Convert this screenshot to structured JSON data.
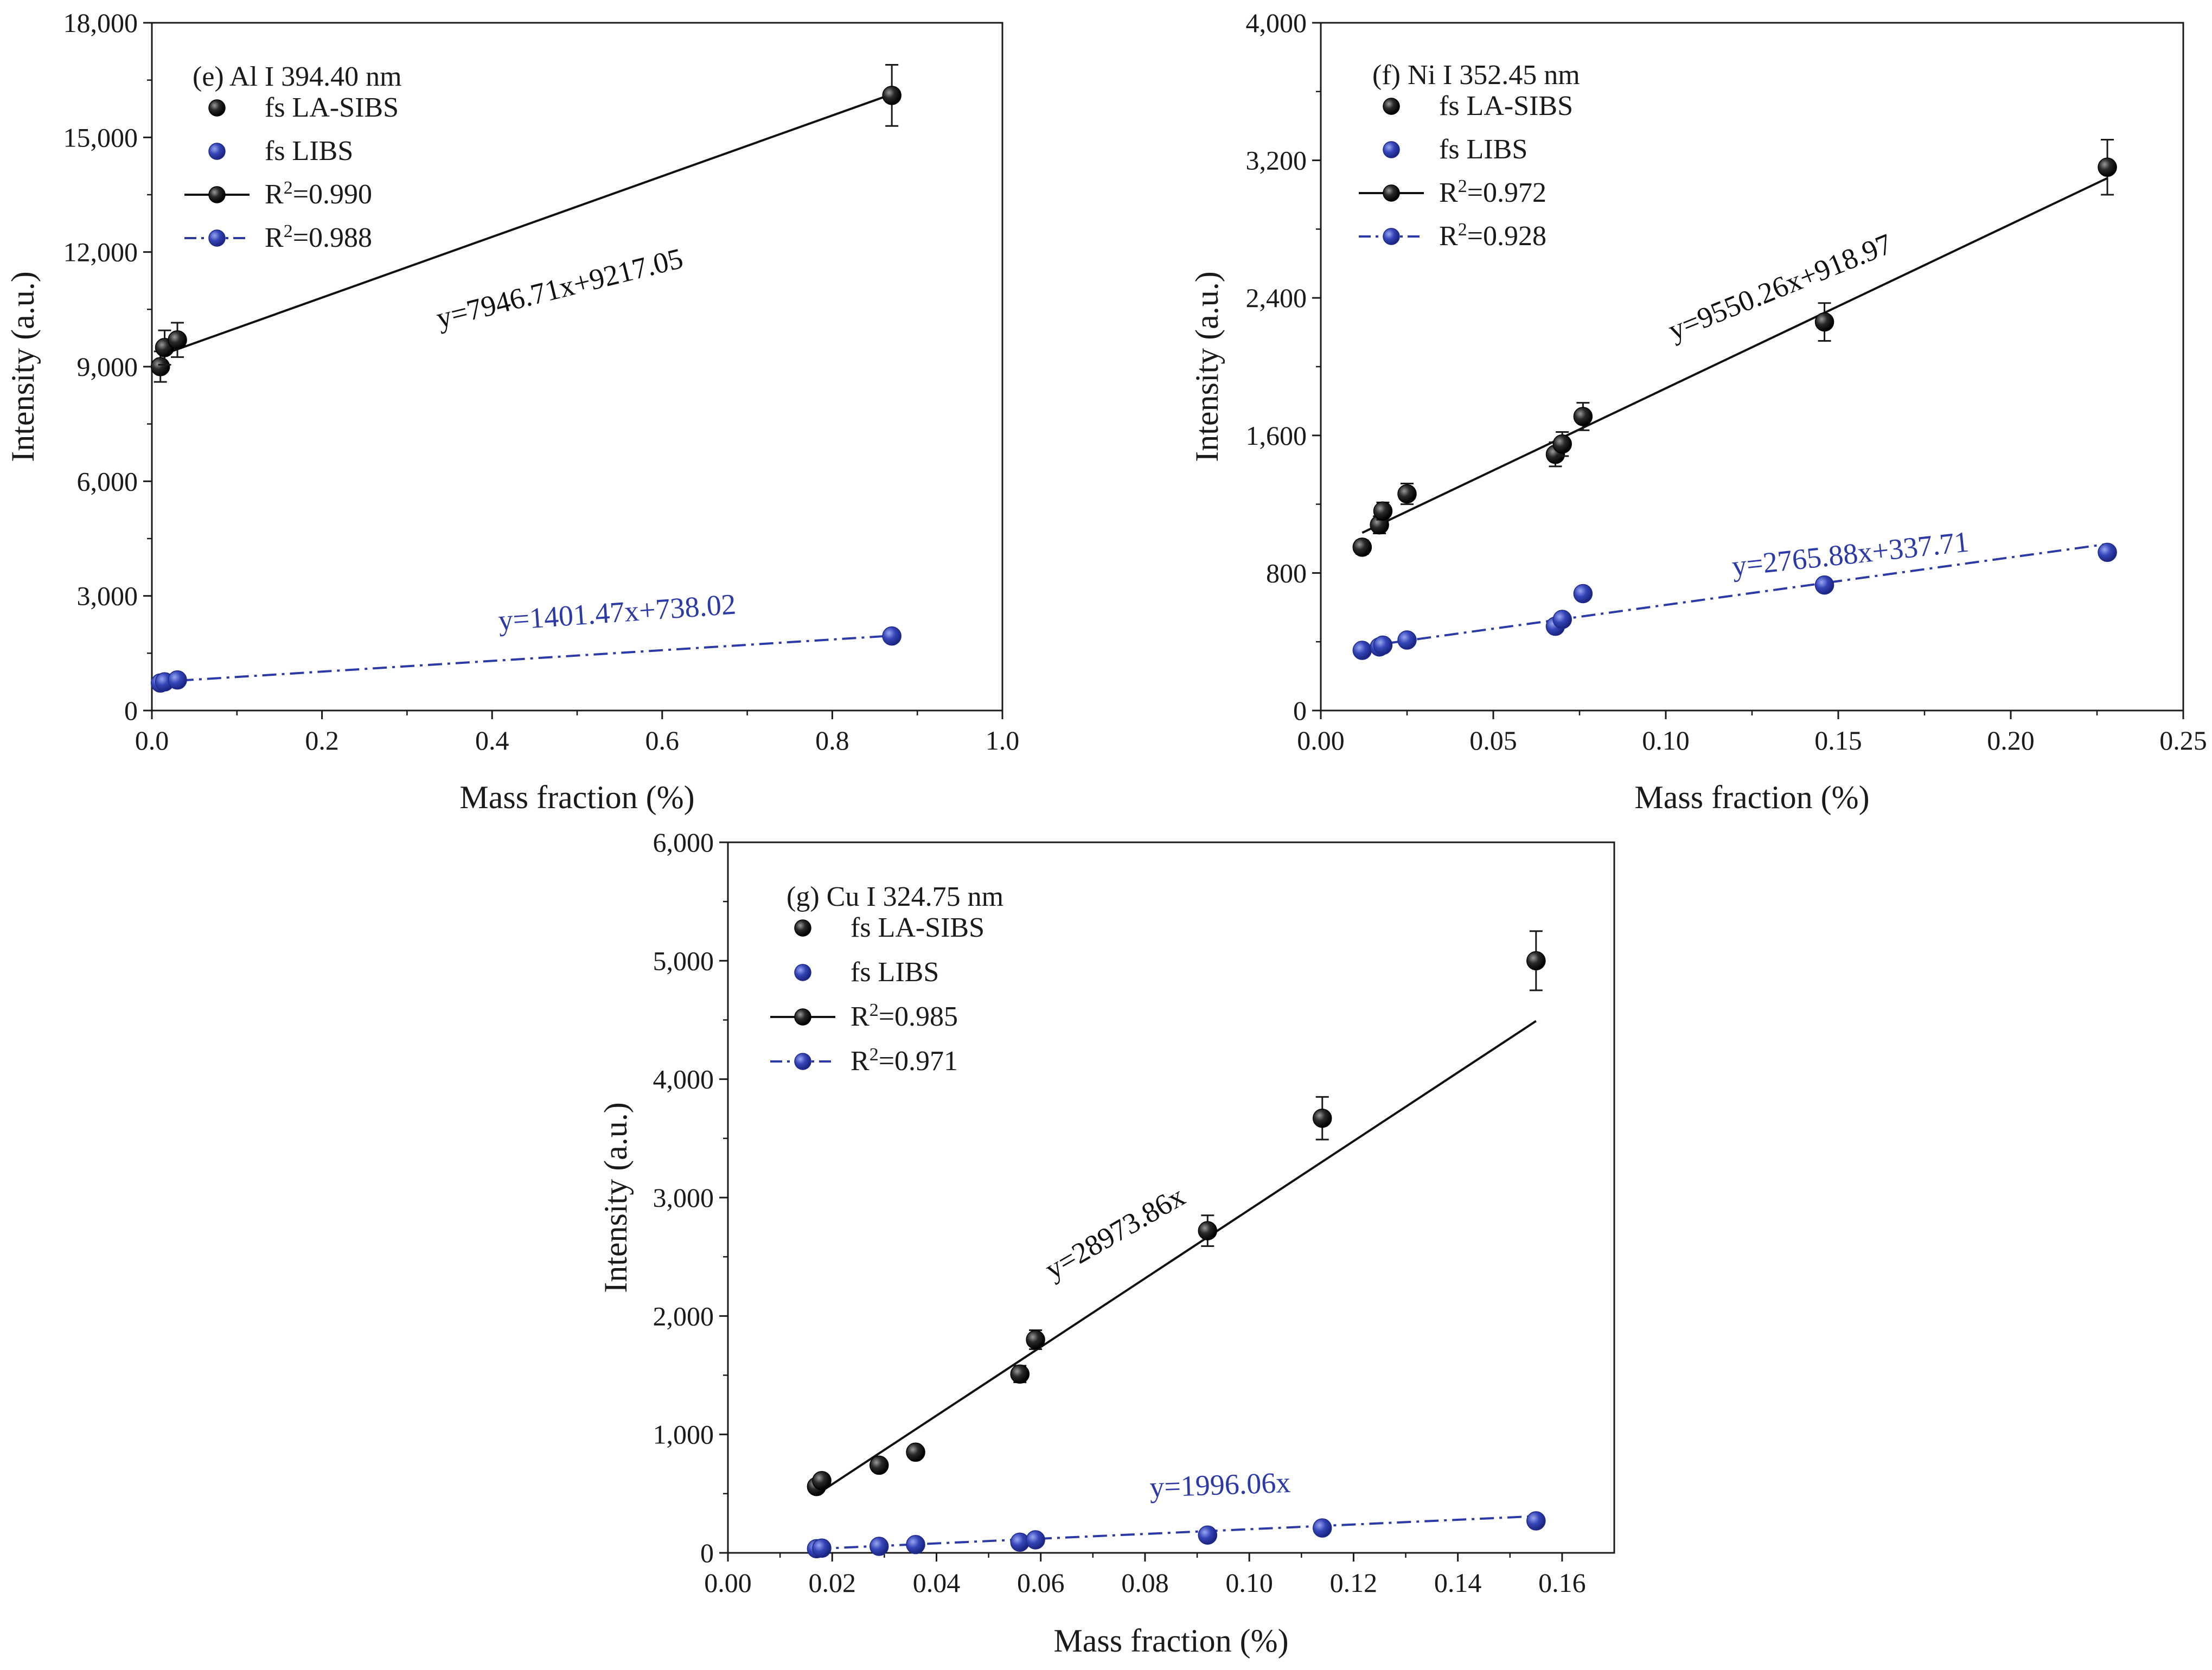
{
  "chart_data": [
    {
      "type": "scatter",
      "title": "(e) Al I 394.40 nm",
      "xlabel": "Mass fraction (%)",
      "ylabel": "Intensity (a.u.)",
      "xlim": [
        0,
        1.0
      ],
      "ylim": [
        0,
        18000
      ],
      "xticks": [
        0,
        0.2,
        0.4,
        0.6,
        0.8,
        1.0
      ],
      "xtick_labels": [
        "0.0",
        "0.2",
        "0.4",
        "0.6",
        "0.8",
        "1.0"
      ],
      "yticks": [
        0,
        3000,
        6000,
        9000,
        12000,
        15000,
        18000
      ],
      "ytick_labels": [
        "0",
        "3,000",
        "6,000",
        "9,000",
        "12,000",
        "15,000",
        "18,000"
      ],
      "series": [
        {
          "name": "fs LA-SIBS",
          "fit_label": "R2=0.990",
          "r2_value": "0.990",
          "equation": "y=7946.71x+9217.05",
          "slope": 7946.71,
          "intercept": 9217.05,
          "color": "#111111",
          "line_style": "solid",
          "x": [
            0.01,
            0.015,
            0.03,
            0.87
          ],
          "y": [
            9000,
            9500,
            9700,
            16100
          ],
          "err": [
            400,
            450,
            450,
            800
          ],
          "fit_x": [
            0.01,
            0.87
          ]
        },
        {
          "name": "fs LIBS",
          "fit_label": "R2=0.988",
          "r2_value": "0.988",
          "equation": "y=1401.47x+738.02",
          "slope": 1401.47,
          "intercept": 738.02,
          "color": "#2c3aa8",
          "line_style": "dashdot",
          "x": [
            0.01,
            0.015,
            0.03,
            0.87
          ],
          "y": [
            720,
            750,
            800,
            1950
          ],
          "err": [
            0,
            0,
            0,
            0
          ],
          "fit_x": [
            0.0,
            0.87
          ]
        }
      ]
    },
    {
      "type": "scatter",
      "title": "(f) Ni I 352.45 nm",
      "xlabel": "Mass fraction (%)",
      "ylabel": "Intensity (a.u.)",
      "xlim": [
        0,
        0.25
      ],
      "ylim": [
        0,
        4000
      ],
      "xticks": [
        0,
        0.05,
        0.1,
        0.15,
        0.2,
        0.25
      ],
      "xtick_labels": [
        "0.00",
        "0.05",
        "0.10",
        "0.15",
        "0.20",
        "0.25"
      ],
      "yticks": [
        0,
        800,
        1600,
        2400,
        3200,
        4000
      ],
      "ytick_labels": [
        "0",
        "800",
        "1,600",
        "2,400",
        "3,200",
        "4,000"
      ],
      "series": [
        {
          "name": "fs LA-SIBS",
          "fit_label": "R2=0.972",
          "r2_value": "0.972",
          "equation": "y=9550.26x+918.97",
          "slope": 9550.26,
          "intercept": 918.97,
          "color": "#111111",
          "line_style": "solid",
          "x": [
            0.012,
            0.017,
            0.018,
            0.025,
            0.068,
            0.07,
            0.076,
            0.146,
            0.228
          ],
          "y": [
            950,
            1080,
            1160,
            1260,
            1490,
            1550,
            1710,
            2260,
            3160
          ],
          "err": [
            40,
            50,
            50,
            60,
            70,
            70,
            80,
            110,
            160
          ],
          "fit_x": [
            0.012,
            0.228
          ]
        },
        {
          "name": "fs LIBS",
          "fit_label": "R2=0.928",
          "r2_value": "0.928",
          "equation": "y=2765.88x+337.71",
          "slope": 2765.88,
          "intercept": 337.71,
          "color": "#2c3aa8",
          "line_style": "dashdot",
          "x": [
            0.012,
            0.017,
            0.018,
            0.025,
            0.068,
            0.07,
            0.076,
            0.146,
            0.228
          ],
          "y": [
            350,
            370,
            380,
            410,
            490,
            530,
            680,
            730,
            920
          ],
          "err": [
            0,
            0,
            0,
            0,
            0,
            0,
            0,
            0,
            0
          ],
          "fit_x": [
            0.012,
            0.228
          ]
        }
      ]
    },
    {
      "type": "scatter",
      "title": "(g) Cu I 324.75 nm",
      "xlabel": "Mass fraction (%)",
      "ylabel": "Intensity (a.u.)",
      "xlim": [
        0,
        0.17
      ],
      "ylim": [
        0,
        6000
      ],
      "xticks": [
        0,
        0.02,
        0.04,
        0.06,
        0.08,
        0.1,
        0.12,
        0.14,
        0.16
      ],
      "xtick_labels": [
        "0.00",
        "0.02",
        "0.04",
        "0.06",
        "0.08",
        "0.10",
        "0.12",
        "0.14",
        "0.16"
      ],
      "yticks": [
        0,
        1000,
        2000,
        3000,
        4000,
        5000,
        6000
      ],
      "ytick_labels": [
        "0",
        "1,000",
        "2,000",
        "3,000",
        "4,000",
        "5,000",
        "6,000"
      ],
      "series": [
        {
          "name": "fs LA-SIBS",
          "fit_label": "R2=0.985",
          "r2_value": "0.985",
          "equation": "y=28973.86x",
          "slope": 28973.86,
          "intercept": 0,
          "color": "#111111",
          "line_style": "solid",
          "x": [
            0.017,
            0.018,
            0.029,
            0.036,
            0.056,
            0.059,
            0.092,
            0.114,
            0.155
          ],
          "y": [
            560,
            610,
            740,
            850,
            1510,
            1800,
            2720,
            3670,
            5000
          ],
          "err": [
            40,
            40,
            40,
            40,
            70,
            80,
            130,
            180,
            250
          ],
          "fit_x": [
            0.017,
            0.155
          ]
        },
        {
          "name": "fs LIBS",
          "fit_label": "R2=0.971",
          "r2_value": "0.971",
          "equation": "y=1996.06x",
          "slope": 1996.06,
          "intercept": 0,
          "color": "#2c3aa8",
          "line_style": "dashdot",
          "x": [
            0.017,
            0.018,
            0.029,
            0.036,
            0.056,
            0.059,
            0.092,
            0.114,
            0.155
          ],
          "y": [
            35,
            40,
            55,
            70,
            90,
            110,
            150,
            210,
            270
          ],
          "err": [
            0,
            0,
            0,
            0,
            0,
            0,
            0,
            0,
            0
          ],
          "fit_x": [
            0.017,
            0.155
          ]
        }
      ]
    }
  ]
}
